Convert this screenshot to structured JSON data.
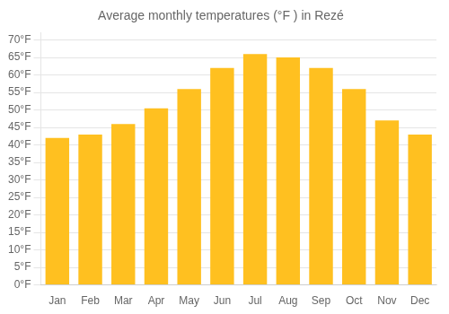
{
  "chart_data": {
    "type": "bar",
    "title": "Average monthly temperatures (°F ) in Rezé",
    "categories": [
      "Jan",
      "Feb",
      "Mar",
      "Apr",
      "May",
      "Jun",
      "Jul",
      "Aug",
      "Sep",
      "Oct",
      "Nov",
      "Dec"
    ],
    "values": [
      42,
      43,
      46,
      50.5,
      56,
      62,
      66,
      65,
      62,
      56,
      47,
      43
    ],
    "color": "#FFC020",
    "ylim": [
      0,
      72
    ],
    "yticks": [
      {
        "value": 0,
        "label": "0°F"
      },
      {
        "value": 5,
        "label": "5°F"
      },
      {
        "value": 10,
        "label": "10°F"
      },
      {
        "value": 15,
        "label": "15°F"
      },
      {
        "value": 20,
        "label": "20°F"
      },
      {
        "value": 25,
        "label": "25°F"
      },
      {
        "value": 30,
        "label": "30°F"
      },
      {
        "value": 35,
        "label": "35°F"
      },
      {
        "value": 40,
        "label": "40°F"
      },
      {
        "value": 45,
        "label": "45°F"
      },
      {
        "value": 50,
        "label": "50°F"
      },
      {
        "value": 55,
        "label": "55°F"
      },
      {
        "value": 60,
        "label": "60°F"
      },
      {
        "value": 65,
        "label": "65°F"
      },
      {
        "value": 70,
        "label": "70°F"
      }
    ],
    "grid": true
  }
}
